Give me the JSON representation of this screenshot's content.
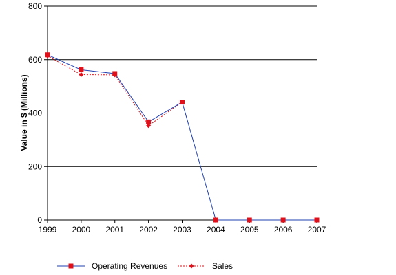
{
  "chart_data": {
    "type": "line",
    "title": "",
    "xlabel": "",
    "ylabel": "Value in $ (Millions)",
    "ylim": [
      0,
      800
    ],
    "yticks": [
      0,
      200,
      400,
      600,
      800
    ],
    "grid": "horizontal",
    "legend_position": "bottom-left",
    "categories": [
      "1999",
      "2000",
      "2001",
      "2002",
      "2003",
      "2004",
      "2005",
      "2006",
      "2007"
    ],
    "series": [
      {
        "name": "Operating Revenues",
        "color": "#1f3fb0",
        "marker_color": "#e0101a",
        "marker": "square",
        "line_style": "solid",
        "values": [
          618,
          562,
          548,
          367,
          441,
          0,
          0,
          0,
          0
        ]
      },
      {
        "name": "Sales",
        "color": "#e0101a",
        "marker_color": "#e0101a",
        "marker": "diamond",
        "line_style": "dotted",
        "values": [
          614,
          544,
          543,
          353,
          441,
          null,
          null,
          null,
          null
        ]
      }
    ]
  }
}
